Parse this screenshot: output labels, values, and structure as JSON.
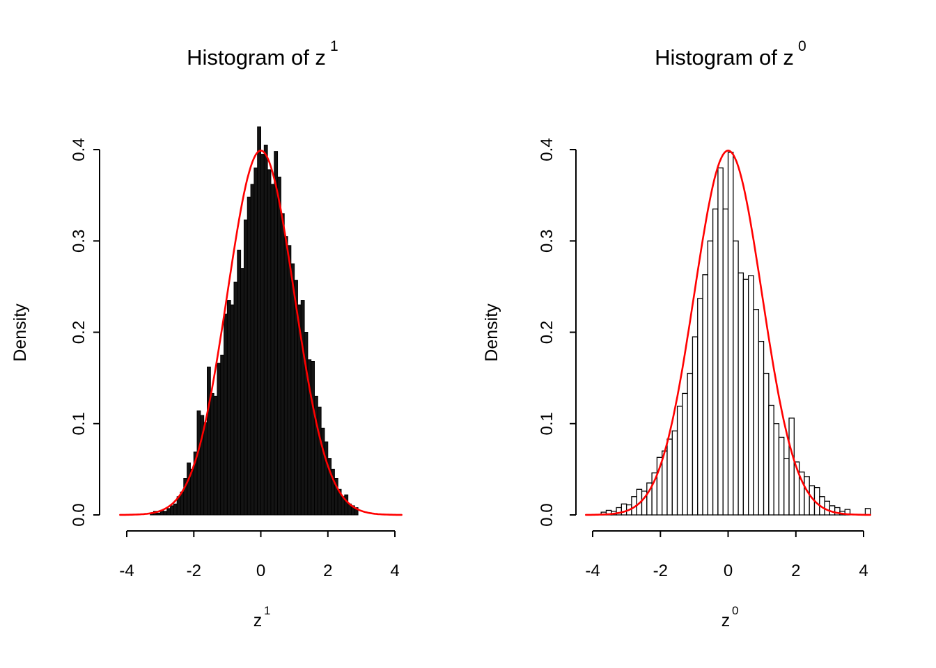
{
  "page": {
    "background": "#ffffff",
    "text_color": "#000000"
  },
  "chart_data": [
    {
      "type": "bar",
      "subtype": "histogram-with-density-curve",
      "title_base": "Histogram of z",
      "title_sup": "1",
      "xlabel_base": "z",
      "xlabel_sup": "1",
      "ylabel": "Density",
      "x_ticks": [
        -4,
        -2,
        0,
        2,
        4
      ],
      "x_tick_labels": [
        "-4",
        "-2",
        "0",
        "2",
        "4"
      ],
      "y_ticks": [
        0,
        0.1,
        0.2,
        0.3,
        0.4
      ],
      "y_tick_labels": [
        "0.0",
        "0.1",
        "0.2",
        "0.3",
        "0.4"
      ],
      "xlim": [
        -4,
        4
      ],
      "ylim": [
        0,
        0.4
      ],
      "grid": false,
      "legend": "none",
      "bin_start": -3.3,
      "bin_width": 0.1,
      "densities": [
        0.002,
        0.004,
        0.002,
        0.005,
        0.004,
        0.007,
        0.01,
        0.012,
        0.02,
        0.025,
        0.04,
        0.057,
        0.05,
        0.069,
        0.114,
        0.109,
        0.101,
        0.162,
        0.133,
        0.13,
        0.166,
        0.175,
        0.22,
        0.235,
        0.23,
        0.255,
        0.29,
        0.27,
        0.323,
        0.348,
        0.362,
        0.38,
        0.425,
        0.395,
        0.405,
        0.378,
        0.362,
        0.398,
        0.37,
        0.33,
        0.305,
        0.295,
        0.275,
        0.257,
        0.23,
        0.235,
        0.2,
        0.17,
        0.168,
        0.13,
        0.118,
        0.095,
        0.08,
        0.062,
        0.05,
        0.04,
        0.028,
        0.02,
        0.022,
        0.012,
        0.01,
        0.008
      ],
      "bar_fill": "#141414",
      "bar_stroke": "#000000",
      "bar_stroke_width": 1.0,
      "curve": {
        "shape": "normal",
        "mean": 0,
        "sd": 1,
        "peak_density": 0.399,
        "color": "#ff0000",
        "x_range": [
          -4.2,
          4.2
        ]
      },
      "axis_color": "#000000"
    },
    {
      "type": "bar",
      "subtype": "histogram-with-density-curve",
      "title_base": "Histogram of z",
      "title_sup": "0",
      "xlabel_base": "z",
      "xlabel_sup": "0",
      "ylabel": "Density",
      "x_ticks": [
        -4,
        -2,
        0,
        2,
        4
      ],
      "x_tick_labels": [
        "-4",
        "-2",
        "0",
        "2",
        "4"
      ],
      "y_ticks": [
        0,
        0.1,
        0.2,
        0.3,
        0.4
      ],
      "y_tick_labels": [
        "0.0",
        "0.1",
        "0.2",
        "0.3",
        "0.4"
      ],
      "xlim": [
        -4,
        4
      ],
      "ylim": [
        0,
        0.4
      ],
      "grid": false,
      "legend": "none",
      "bin_start": -3.75,
      "bin_width": 0.15,
      "densities": [
        0.003,
        0.005,
        0.004,
        0.008,
        0.012,
        0.011,
        0.02,
        0.028,
        0.026,
        0.035,
        0.046,
        0.063,
        0.07,
        0.083,
        0.092,
        0.119,
        0.133,
        0.155,
        0.195,
        0.237,
        0.263,
        0.3,
        0.335,
        0.38,
        0.335,
        0.397,
        0.3,
        0.265,
        0.258,
        0.262,
        0.225,
        0.19,
        0.155,
        0.12,
        0.1,
        0.085,
        0.062,
        0.106,
        0.058,
        0.047,
        0.042,
        0.032,
        0.03,
        0.02,
        0.015,
        0.01,
        0.008,
        0.004,
        0.006,
        0.0,
        0.0,
        0.0,
        0.007
      ],
      "bar_fill": "#ffffff",
      "bar_stroke": "#000000",
      "bar_stroke_width": 1.3,
      "curve": {
        "shape": "normal",
        "mean": 0,
        "sd": 1,
        "peak_density": 0.399,
        "color": "#ff0000",
        "x_range": [
          -4.2,
          4.2
        ]
      },
      "axis_color": "#000000"
    }
  ]
}
